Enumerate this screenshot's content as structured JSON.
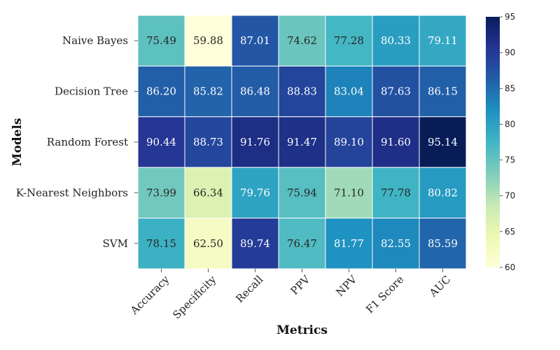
{
  "chart_data": {
    "type": "heatmap",
    "title": "",
    "xlabel": "Metrics",
    "ylabel": "Models",
    "x_categories": [
      "Accuracy",
      "Specificity",
      "Recall",
      "PPV",
      "NPV",
      "F1 Score",
      "AUC"
    ],
    "y_categories": [
      "Naive Bayes",
      "Decision Tree",
      "Random Forest",
      "K-Nearest Neighbors",
      "SVM"
    ],
    "values": [
      [
        75.49,
        59.88,
        87.01,
        74.62,
        77.28,
        80.33,
        79.11
      ],
      [
        86.2,
        85.82,
        86.48,
        88.83,
        83.04,
        87.63,
        86.15
      ],
      [
        90.44,
        88.73,
        91.76,
        91.47,
        89.1,
        91.6,
        95.14
      ],
      [
        73.99,
        66.34,
        79.76,
        75.94,
        71.1,
        77.78,
        80.82
      ],
      [
        78.15,
        62.5,
        89.74,
        76.47,
        81.77,
        82.55,
        85.59
      ]
    ],
    "colorbar": {
      "min": 60,
      "max": 95,
      "ticks": [
        60,
        65,
        70,
        75,
        80,
        85,
        90,
        95
      ],
      "colormap": "YlGnBu",
      "colors": [
        "#ffffd9",
        "#edf8b1",
        "#c7e9b4",
        "#7fcdbb",
        "#41b6c4",
        "#1d91c0",
        "#225ea8",
        "#253494",
        "#081d58"
      ]
    }
  }
}
